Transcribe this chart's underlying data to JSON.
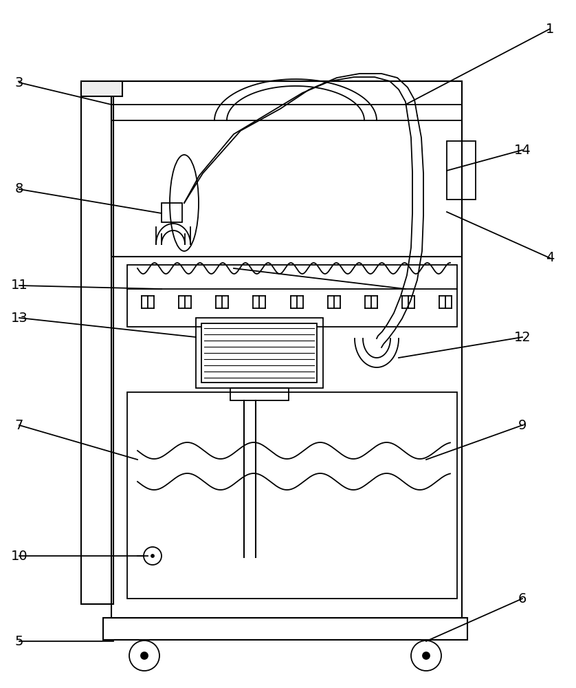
{
  "bg_color": "#ffffff",
  "lc": "#000000",
  "lw": 1.3,
  "fig_w": 8.38,
  "fig_h": 10.0
}
